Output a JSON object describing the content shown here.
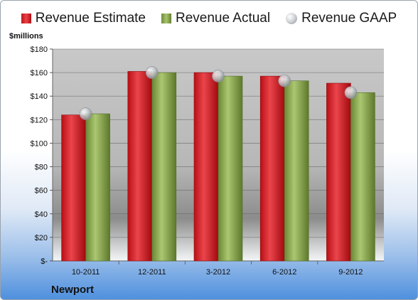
{
  "company": "Newport",
  "chart_data": {
    "type": "bar",
    "ylabel": "$millions",
    "categories": [
      "10-2011",
      "12-2011",
      "3-2012",
      "6-2012",
      "9-2012"
    ],
    "series": [
      {
        "name": "Revenue Estimate",
        "kind": "bar",
        "color": "#d3202a",
        "values": [
          124,
          161,
          160,
          157,
          151
        ]
      },
      {
        "name": "Revenue Actual",
        "kind": "bar",
        "color": "#8fad52",
        "values": [
          125,
          160,
          157,
          153,
          143
        ]
      },
      {
        "name": "Revenue GAAP",
        "kind": "marker",
        "color": "#c0c4c8",
        "values": [
          125,
          160,
          157,
          153,
          143
        ]
      }
    ],
    "ylim": [
      0,
      180
    ],
    "yticks": [
      0,
      20,
      40,
      60,
      80,
      100,
      120,
      140,
      160,
      180
    ],
    "ytick_labels": [
      "$-",
      "$20",
      "$40",
      "$60",
      "$80",
      "$100",
      "$120",
      "$140",
      "$160",
      "$180"
    ],
    "grid": true,
    "legend": "top"
  }
}
